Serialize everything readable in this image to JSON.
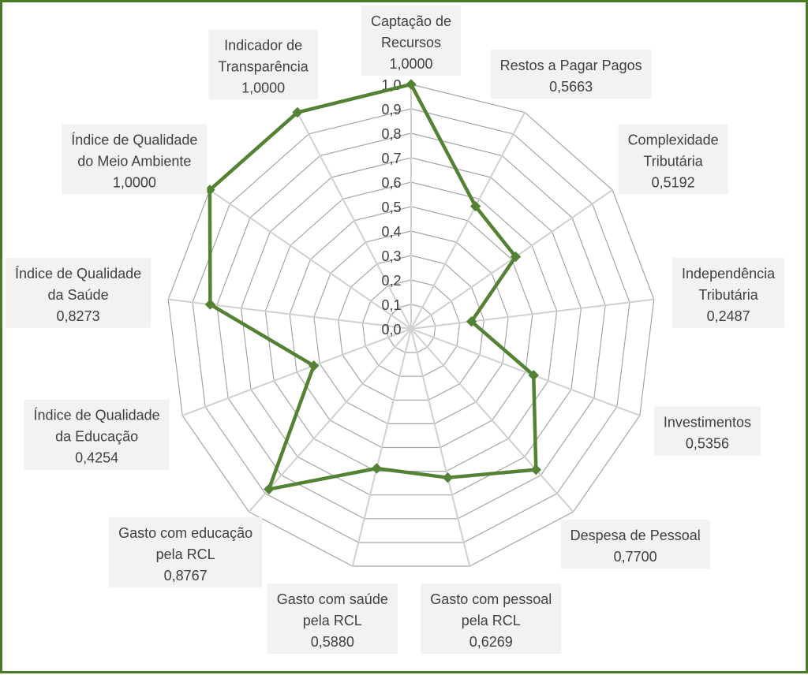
{
  "chart_data": {
    "type": "radar",
    "title": "",
    "r_ticks": [
      "0,0",
      "0,1",
      "0,2",
      "0,3",
      "0,4",
      "0,5",
      "0,6",
      "0,7",
      "0,8",
      "0,9",
      "1,0"
    ],
    "rlim": [
      0,
      1
    ],
    "grid": true,
    "categories": [
      {
        "label": [
          "Captação de",
          "Recursos"
        ],
        "value": 1.0,
        "value_label": "1,0000"
      },
      {
        "label": [
          "Restos a Pagar Pagos"
        ],
        "value": 0.5663,
        "value_label": "0,5663"
      },
      {
        "label": [
          "Complexidade",
          "Tributária"
        ],
        "value": 0.5192,
        "value_label": "0,5192"
      },
      {
        "label": [
          "Independência",
          "Tributária"
        ],
        "value": 0.2487,
        "value_label": "0,2487"
      },
      {
        "label": [
          "Investimentos"
        ],
        "value": 0.5356,
        "value_label": "0,5356"
      },
      {
        "label": [
          "Despesa de Pessoal"
        ],
        "value": 0.77,
        "value_label": "0,7700"
      },
      {
        "label": [
          "Gasto com pessoal",
          "pela RCL"
        ],
        "value": 0.6269,
        "value_label": "0,6269"
      },
      {
        "label": [
          "Gasto com saúde",
          "pela RCL"
        ],
        "value": 0.588,
        "value_label": "0,5880"
      },
      {
        "label": [
          "Gasto com educação",
          "pela RCL"
        ],
        "value": 0.8767,
        "value_label": "0,8767"
      },
      {
        "label": [
          "Índice de Qualidade",
          "da Educação"
        ],
        "value": 0.4254,
        "value_label": "0,4254"
      },
      {
        "label": [
          "Índice de Qualidade",
          "da Saúde"
        ],
        "value": 0.8273,
        "value_label": "0,8273"
      },
      {
        "label": [
          "Índice de Qualidade",
          "do Meio Ambiente"
        ],
        "value": 1.0,
        "value_label": "1,0000"
      },
      {
        "label": [
          "Indicador de",
          "Transparência"
        ],
        "value": 1.0,
        "value_label": "1,0000"
      }
    ],
    "colors": {
      "series": "#548235",
      "grid": "#a6a6a6",
      "spoke": "#d0d0d0",
      "label_box": "#f2f2f2",
      "text": "#404040",
      "frame": "#4a7a26"
    }
  }
}
